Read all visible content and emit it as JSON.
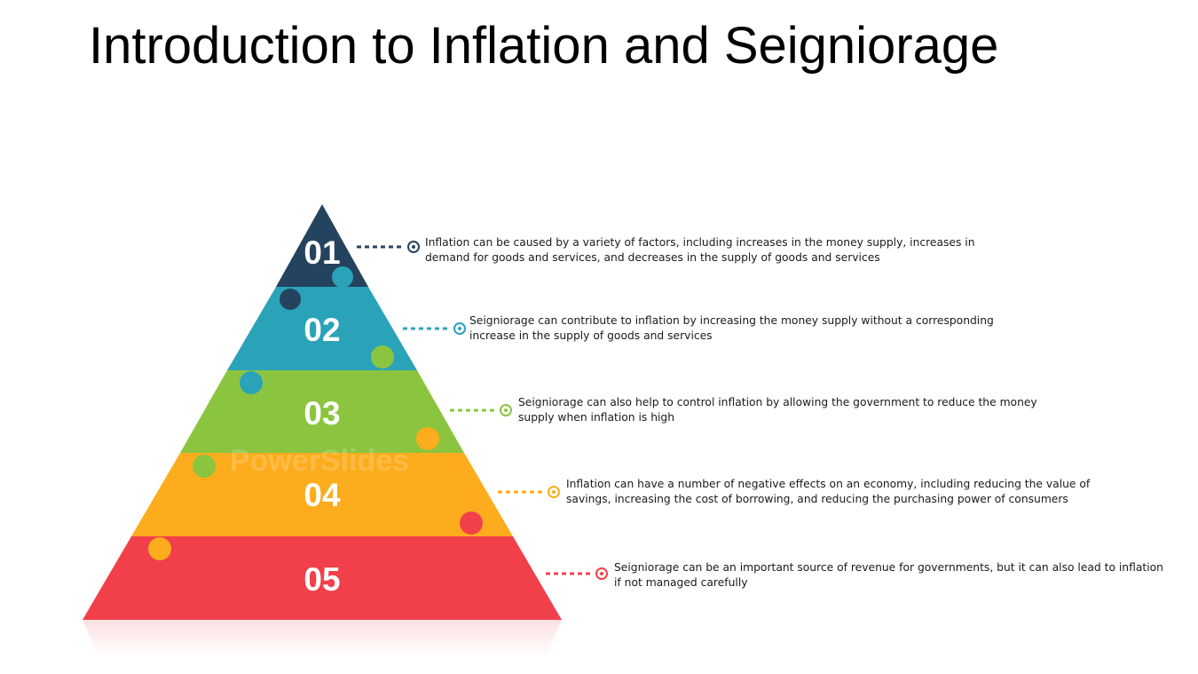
{
  "title": "Introduction to Inflation and Seigniorage",
  "watermark": "PowerSlides",
  "levels": [
    {
      "number": "01",
      "color": "#24435f",
      "text": "Inflation can be caused by a variety of factors, including increases in the money supply, increases in demand for goods and services, and decreases in the supply of goods and services"
    },
    {
      "number": "02",
      "color": "#2aa3b9",
      "text": "Seigniorage can contribute to inflation by increasing the money supply without a corresponding increase in the supply of goods and services"
    },
    {
      "number": "03",
      "color": "#8bc540",
      "text": "Seigniorage can also help to control inflation by allowing the government to reduce the money supply when inflation is high"
    },
    {
      "number": "04",
      "color": "#fcac1c",
      "text": "Inflation can have a number of negative effects on an economy, including reducing the value of savings, increasing the cost of borrowing, and reducing the purchasing power of consumers"
    },
    {
      "number": "05",
      "color": "#f2404b",
      "text": "Seigniorage can be an important source of revenue for governments, but it can also lead to inflation if not managed carefully"
    }
  ]
}
